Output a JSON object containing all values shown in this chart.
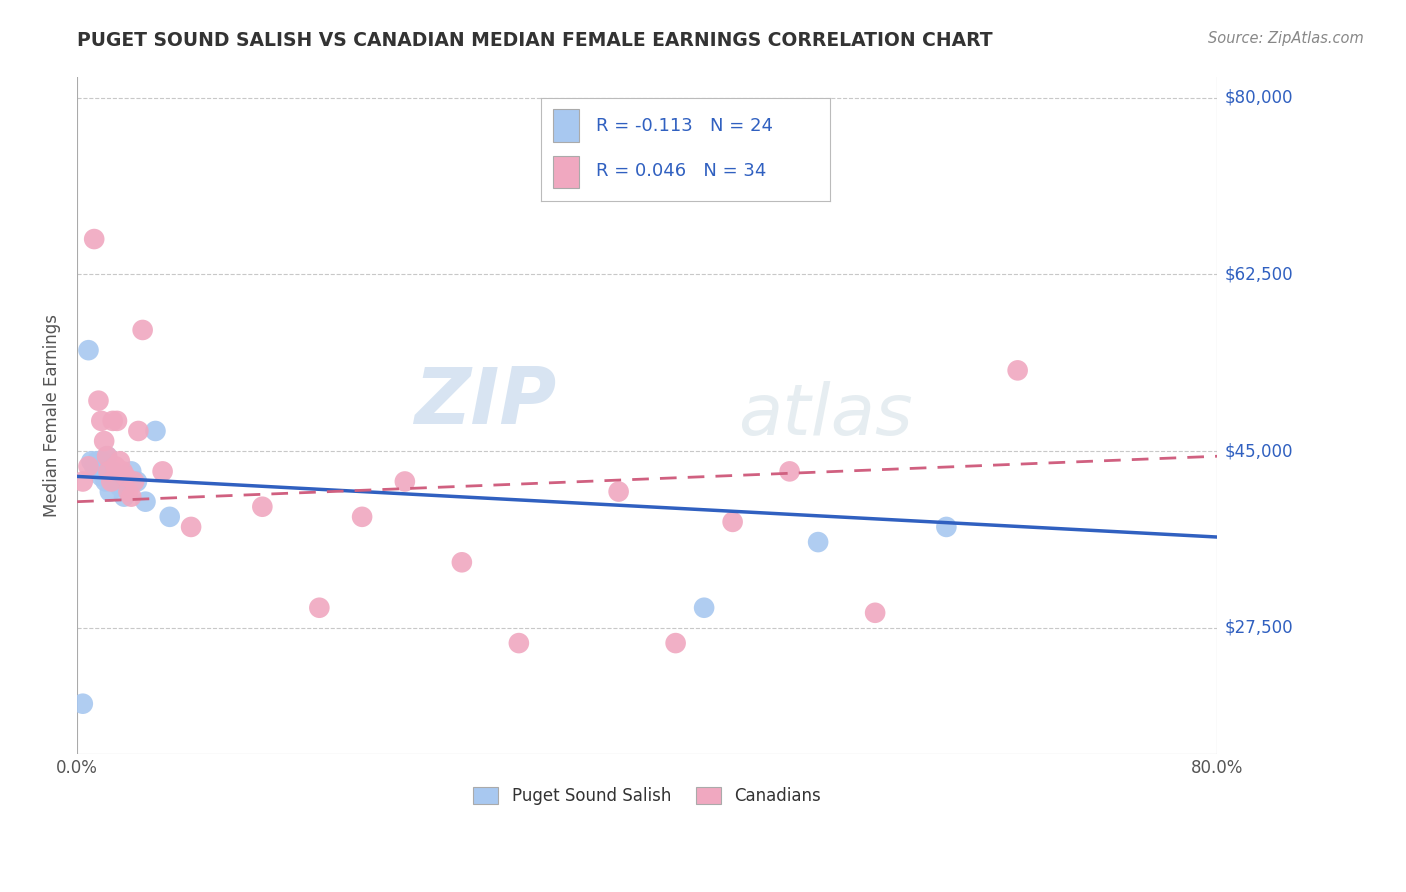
{
  "title": "PUGET SOUND SALISH VS CANADIAN MEDIAN FEMALE EARNINGS CORRELATION CHART",
  "source": "Source: ZipAtlas.com",
  "ylabel": "Median Female Earnings",
  "legend_labels": [
    "Puget Sound Salish",
    "Canadians"
  ],
  "xlim": [
    0.0,
    0.8
  ],
  "ylim": [
    15000,
    82000
  ],
  "yticks": [
    27500,
    45000,
    62500,
    80000
  ],
  "ytick_labels": [
    "$27,500",
    "$45,000",
    "$62,500",
    "$80,000"
  ],
  "xtick_labels": [
    "0.0%",
    "80.0%"
  ],
  "background_color": "#ffffff",
  "grid_color": "#c8c8c8",
  "series1_color": "#a8c8f0",
  "series2_color": "#f0a8c0",
  "series1_line_color": "#3060c0",
  "series2_line_color": "#d06080",
  "r1": -0.113,
  "n1": 24,
  "r2": 0.046,
  "n2": 34,
  "watermark_zip": "ZIP",
  "watermark_atlas": "atlas",
  "series1_x": [
    0.004,
    0.008,
    0.01,
    0.012,
    0.014,
    0.016,
    0.017,
    0.018,
    0.019,
    0.02,
    0.021,
    0.023,
    0.025,
    0.027,
    0.03,
    0.033,
    0.038,
    0.042,
    0.048,
    0.055,
    0.065,
    0.44,
    0.52,
    0.61
  ],
  "series1_y": [
    20000,
    55000,
    44000,
    43500,
    44000,
    43000,
    42500,
    44000,
    43000,
    42000,
    44500,
    41000,
    43000,
    42000,
    41500,
    40500,
    43000,
    42000,
    40000,
    47000,
    38500,
    29500,
    36000,
    37500
  ],
  "series2_x": [
    0.004,
    0.008,
    0.012,
    0.015,
    0.017,
    0.019,
    0.021,
    0.022,
    0.024,
    0.025,
    0.027,
    0.028,
    0.03,
    0.032,
    0.034,
    0.036,
    0.038,
    0.04,
    0.043,
    0.046,
    0.06,
    0.08,
    0.13,
    0.17,
    0.2,
    0.23,
    0.27,
    0.31,
    0.38,
    0.42,
    0.46,
    0.5,
    0.56,
    0.66
  ],
  "series2_y": [
    42000,
    43500,
    66000,
    50000,
    48000,
    46000,
    44500,
    43000,
    42000,
    48000,
    43500,
    48000,
    44000,
    43000,
    42500,
    41000,
    40500,
    42000,
    47000,
    57000,
    43000,
    37500,
    39500,
    29500,
    38500,
    42000,
    34000,
    26000,
    41000,
    26000,
    38000,
    43000,
    29000,
    53000
  ]
}
